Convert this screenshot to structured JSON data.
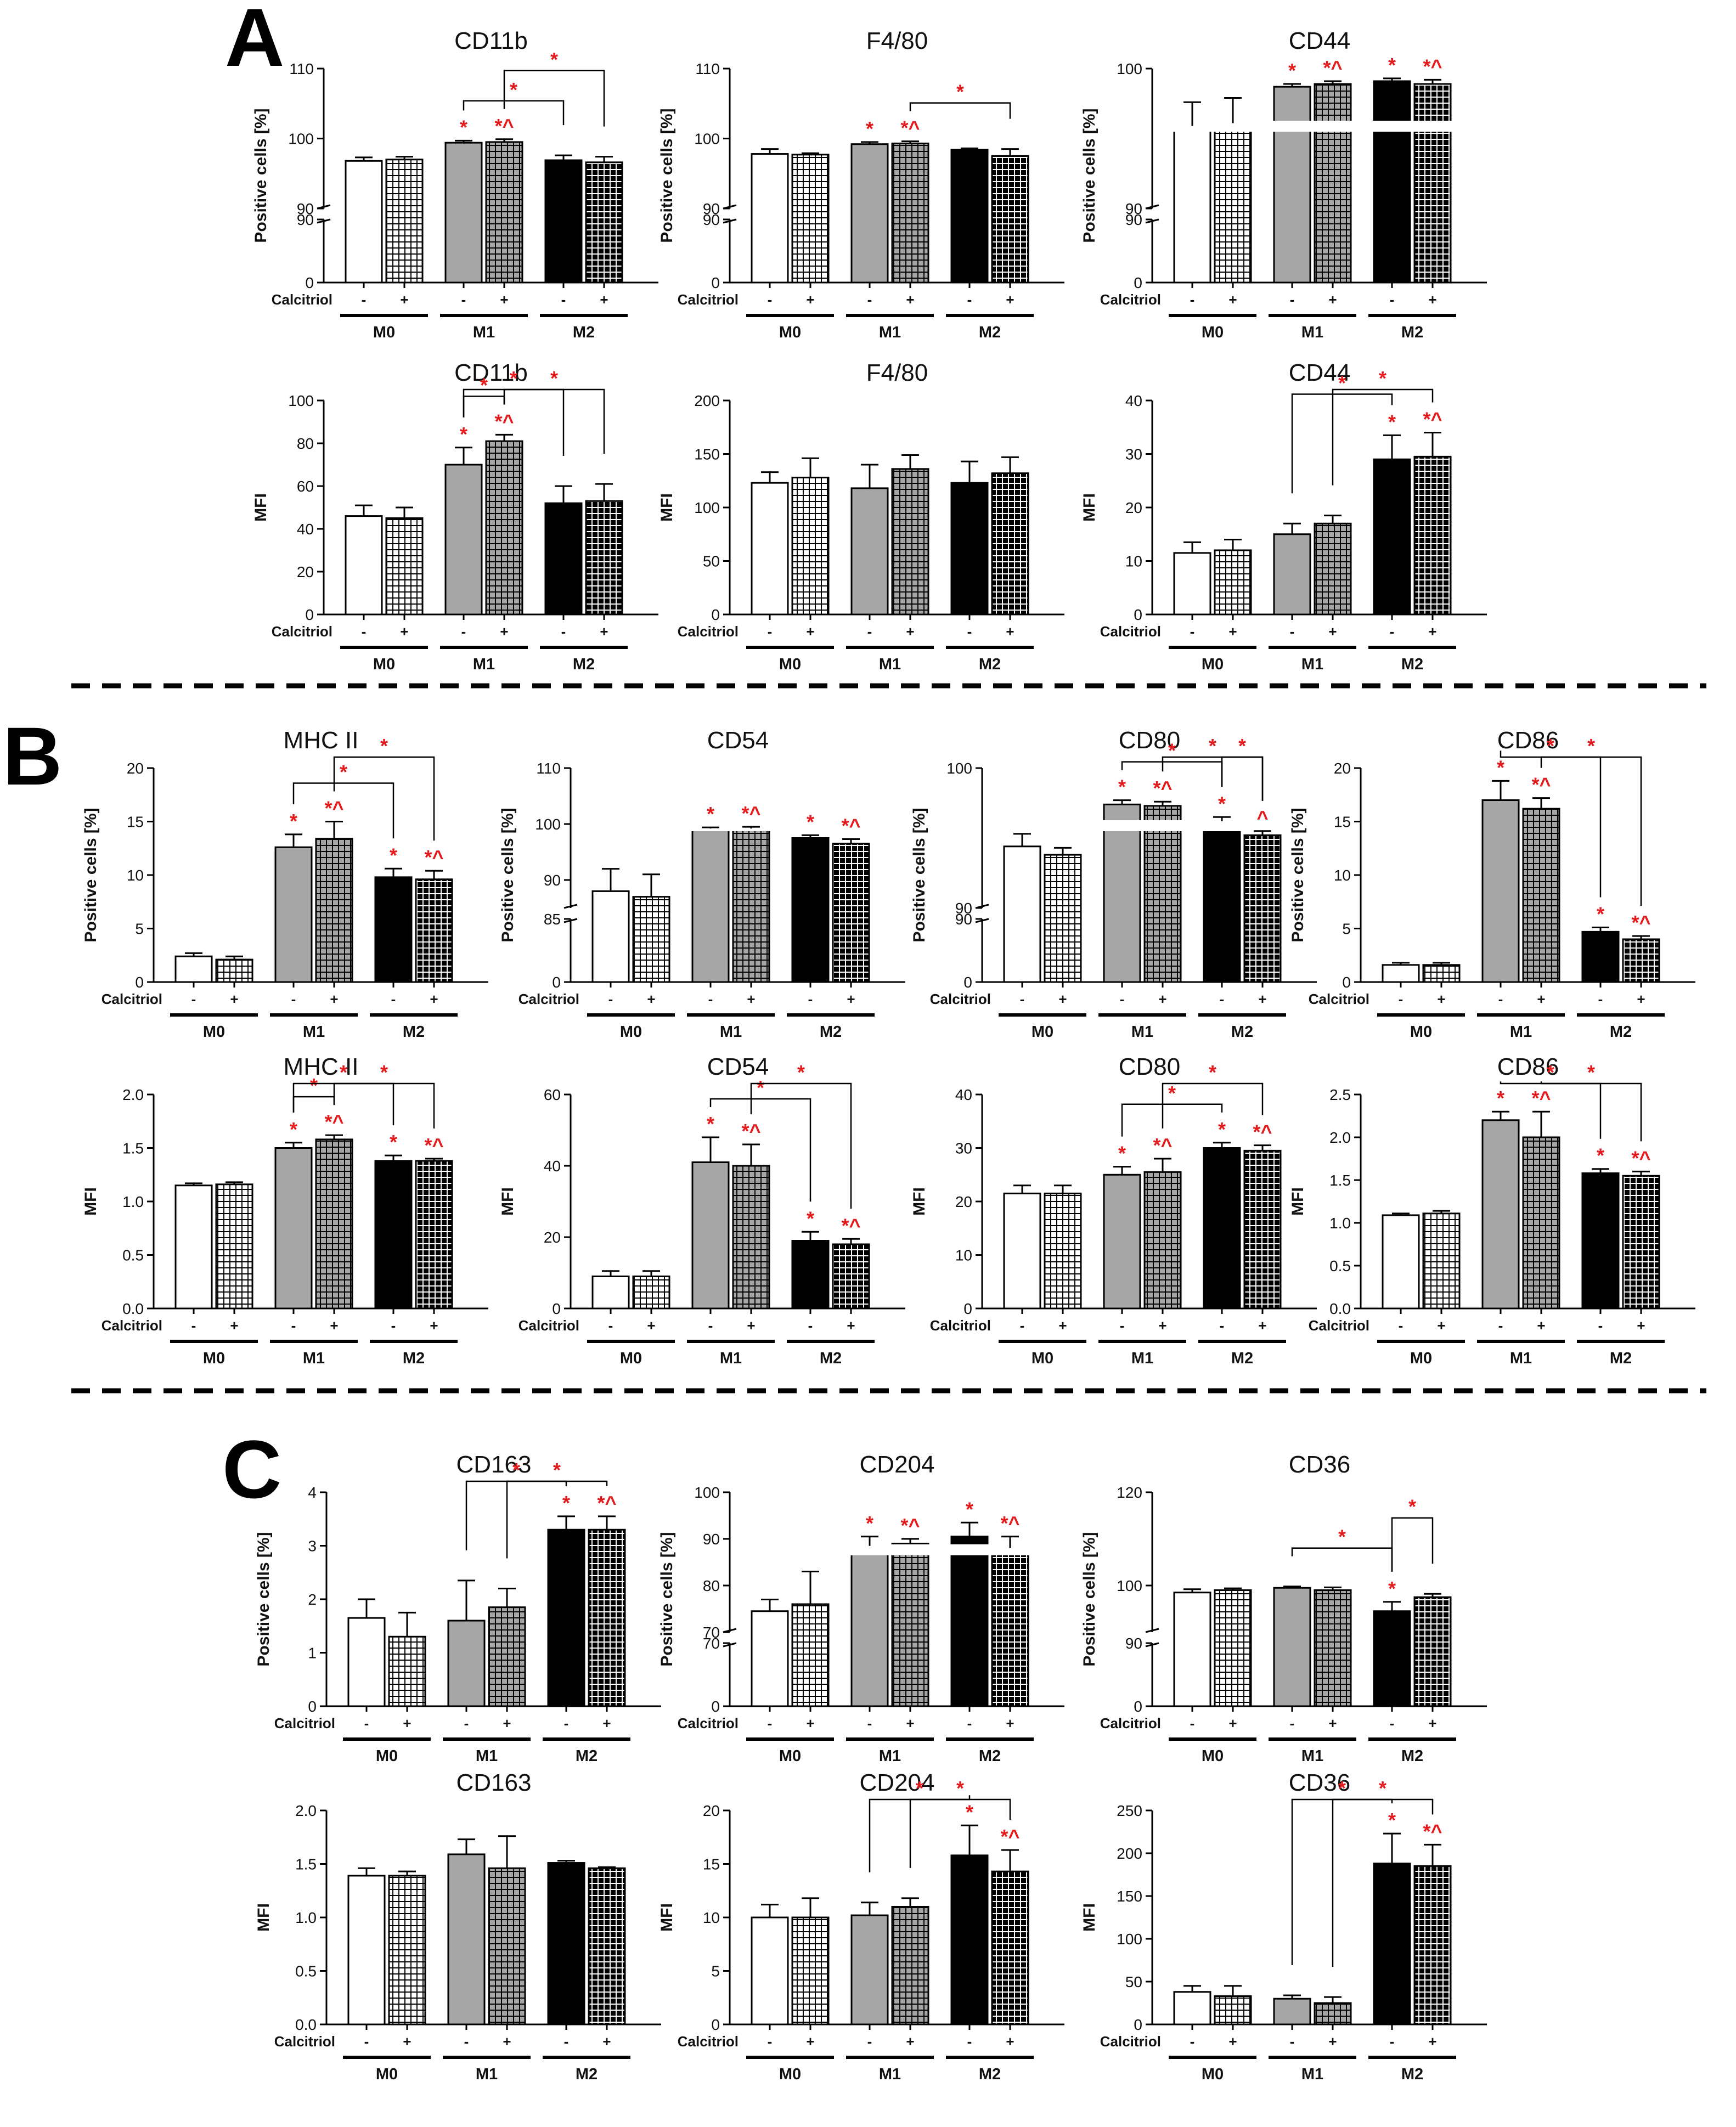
{
  "figure": {
    "sections": [
      "A",
      "B",
      "C"
    ],
    "treatment_label": "Calcitriol",
    "treatment_levels": [
      "-",
      "+"
    ],
    "groups": [
      "M0",
      "M1",
      "M2"
    ],
    "colors": {
      "M0": "#ffffff",
      "M1": "#a6a6a6",
      "M2": "#000000",
      "significance": "#e41a1c",
      "outline": "#000000"
    },
    "significance_symbols": {
      "vs_M0": "*",
      "vs_M0_and_vehicle": "*^",
      "brackets": "*"
    }
  },
  "chart_data": [
    {
      "id": "A1",
      "section": "A",
      "type": "bar",
      "title": "CD11b",
      "ylabel": "Positive cells [%]",
      "axis_break": true,
      "ylim_lower": [
        0,
        90
      ],
      "ylim_upper": [
        90,
        110
      ],
      "yticks_lower": [
        0,
        90
      ],
      "yticks_upper": [
        90,
        100,
        110
      ],
      "categories": [
        "M0 -",
        "M0 +",
        "M1 -",
        "M1 +",
        "M2 -",
        "M2 +"
      ],
      "values": [
        96.8,
        97.0,
        99.4,
        99.5,
        96.9,
        96.6
      ],
      "errors": [
        0.5,
        0.4,
        0.3,
        0.4,
        0.7,
        0.8
      ],
      "stars": [
        "",
        "",
        "*",
        "*^",
        "",
        ""
      ],
      "brackets": [
        [
          2,
          4
        ],
        [
          3,
          5
        ]
      ]
    },
    {
      "id": "A2",
      "section": "A",
      "type": "bar",
      "title": "F4/80",
      "ylabel": "Positive cells [%]",
      "axis_break": true,
      "ylim_lower": [
        0,
        90
      ],
      "ylim_upper": [
        90,
        110
      ],
      "yticks_lower": [
        0,
        90
      ],
      "yticks_upper": [
        90,
        100,
        110
      ],
      "categories": [
        "M0 -",
        "M0 +",
        "M1 -",
        "M1 +",
        "M2 -",
        "M2 +"
      ],
      "values": [
        97.8,
        97.7,
        99.2,
        99.3,
        98.4,
        97.5
      ],
      "errors": [
        0.7,
        0.2,
        0.3,
        0.3,
        0.2,
        1.0
      ],
      "stars": [
        "",
        "",
        "*",
        "*^",
        "",
        ""
      ],
      "brackets": [
        [
          3,
          5
        ]
      ]
    },
    {
      "id": "A3",
      "section": "A",
      "type": "bar",
      "title": "CD44",
      "ylabel": "Positive cells [%]",
      "axis_break": true,
      "ylim_lower": [
        0,
        90
      ],
      "ylim_upper": [
        90,
        100
      ],
      "yticks_lower": [
        0,
        90
      ],
      "yticks_upper": [
        90,
        100
      ],
      "categories": [
        "M0 -",
        "M0 +",
        "M1 -",
        "M1 +",
        "M2 -",
        "M2 +"
      ],
      "values": [
        95.9,
        96.1,
        98.7,
        98.9,
        99.1,
        98.9
      ],
      "errors": [
        1.7,
        1.8,
        0.2,
        0.2,
        0.2,
        0.3
      ],
      "stars": [
        "",
        "",
        "*",
        "*^",
        "*",
        "*^"
      ],
      "brackets": []
    },
    {
      "id": "A4",
      "section": "A",
      "type": "bar",
      "title": "CD11b",
      "ylabel": "MFI",
      "axis_break": false,
      "ylim": [
        0,
        100
      ],
      "yticks": [
        0,
        20,
        40,
        60,
        80,
        100
      ],
      "categories": [
        "M0 -",
        "M0 +",
        "M1 -",
        "M1 +",
        "M2 -",
        "M2 +"
      ],
      "values": [
        46,
        45,
        70,
        81,
        52,
        53
      ],
      "errors": [
        5,
        5,
        8,
        3,
        8,
        8
      ],
      "stars": [
        "",
        "",
        "*",
        "*^",
        "",
        ""
      ],
      "brackets": [
        [
          2,
          3
        ],
        [
          2,
          4
        ],
        [
          3,
          5
        ]
      ]
    },
    {
      "id": "A5",
      "section": "A",
      "type": "bar",
      "title": "F4/80",
      "ylabel": "MFI",
      "axis_break": false,
      "ylim": [
        0,
        200
      ],
      "yticks": [
        0,
        50,
        100,
        150,
        200
      ],
      "categories": [
        "M0 -",
        "M0 +",
        "M1 -",
        "M1 +",
        "M2 -",
        "M2 +"
      ],
      "values": [
        123,
        128,
        118,
        136,
        123,
        132
      ],
      "errors": [
        10,
        18,
        22,
        13,
        20,
        15
      ],
      "stars": [
        "",
        "",
        "",
        "",
        "",
        ""
      ],
      "brackets": []
    },
    {
      "id": "A6",
      "section": "A",
      "type": "bar",
      "title": "CD44",
      "ylabel": "MFI",
      "axis_break": false,
      "ylim": [
        0,
        40
      ],
      "yticks": [
        0,
        10,
        20,
        30,
        40
      ],
      "categories": [
        "M0 -",
        "M0 +",
        "M1 -",
        "M1 +",
        "M2 -",
        "M2 +"
      ],
      "values": [
        11.5,
        12,
        15,
        17,
        29,
        29.5
      ],
      "errors": [
        2,
        2,
        2,
        1.5,
        4.5,
        4.5
      ],
      "stars": [
        "",
        "",
        "",
        "",
        "*",
        "*^"
      ],
      "brackets": [
        [
          2,
          4
        ],
        [
          3,
          5
        ]
      ]
    },
    {
      "id": "B1",
      "section": "B",
      "type": "bar",
      "title": "MHC II",
      "ylabel": "Positive cells [%]",
      "axis_break": false,
      "ylim": [
        0,
        20
      ],
      "yticks": [
        0,
        5,
        10,
        15,
        20
      ],
      "categories": [
        "M0 -",
        "M0 +",
        "M1 -",
        "M1 +",
        "M2 -",
        "M2 +"
      ],
      "values": [
        2.4,
        2.1,
        12.6,
        13.4,
        9.8,
        9.6
      ],
      "errors": [
        0.3,
        0.3,
        1.2,
        1.6,
        0.8,
        0.8
      ],
      "stars": [
        "",
        "",
        "*",
        "*^",
        "*",
        "*^"
      ],
      "brackets": [
        [
          2,
          4
        ],
        [
          3,
          5
        ]
      ]
    },
    {
      "id": "B2",
      "section": "B",
      "type": "bar",
      "title": "CD54",
      "ylabel": "Positive cells [%]",
      "axis_break": true,
      "ylim_lower": [
        0,
        85
      ],
      "ylim_upper": [
        85,
        110
      ],
      "yticks_lower": [
        0,
        85
      ],
      "yticks_upper": [
        90,
        100,
        110
      ],
      "categories": [
        "M0 -",
        "M0 +",
        "M1 -",
        "M1 +",
        "M2 -",
        "M2 +"
      ],
      "values": [
        88,
        87,
        99.2,
        99.2,
        97.5,
        96.5
      ],
      "errors": [
        4,
        4,
        0.2,
        0.3,
        0.5,
        0.8
      ],
      "stars": [
        "",
        "",
        "*",
        "*^",
        "*",
        "*^"
      ],
      "brackets": []
    },
    {
      "id": "B3",
      "section": "B",
      "type": "bar",
      "title": "CD80",
      "ylabel": "Positive cells [%]",
      "axis_break": true,
      "ylim_lower": [
        0,
        90
      ],
      "ylim_upper": [
        90,
        100
      ],
      "yticks_lower": [
        0,
        90
      ],
      "yticks_upper": [
        90,
        100
      ],
      "categories": [
        "M0 -",
        "M0 +",
        "M1 -",
        "M1 +",
        "M2 -",
        "M2 +"
      ],
      "values": [
        94.4,
        93.8,
        97.4,
        97.3,
        96.2,
        95.2
      ],
      "errors": [
        0.9,
        0.5,
        0.3,
        0.3,
        0.3,
        0.3
      ],
      "stars": [
        "",
        "",
        "*",
        "*^",
        "*",
        "^"
      ],
      "brackets": [
        [
          2,
          4
        ],
        [
          3,
          5
        ],
        [
          4,
          5
        ]
      ]
    },
    {
      "id": "B4",
      "section": "B",
      "type": "bar",
      "title": "CD86",
      "ylabel": "Positive cells [%]",
      "axis_break": false,
      "ylim": [
        0,
        20
      ],
      "yticks": [
        0,
        5,
        10,
        15,
        20
      ],
      "categories": [
        "M0 -",
        "M0 +",
        "M1 -",
        "M1 +",
        "M2 -",
        "M2 +"
      ],
      "values": [
        1.6,
        1.6,
        17.0,
        16.2,
        4.7,
        4.0
      ],
      "errors": [
        0.2,
        0.2,
        1.8,
        1.0,
        0.4,
        0.3
      ],
      "stars": [
        "",
        "",
        "*",
        "*^",
        "*",
        "*^"
      ],
      "brackets": [
        [
          2,
          4
        ],
        [
          3,
          5
        ]
      ]
    },
    {
      "id": "B5",
      "section": "B",
      "type": "bar",
      "title": "MHC II",
      "ylabel": "MFI",
      "axis_break": false,
      "ylim": [
        0,
        2.0
      ],
      "yticks": [
        0.0,
        0.5,
        1.0,
        1.5,
        2.0
      ],
      "categories": [
        "M0 -",
        "M0 +",
        "M1 -",
        "M1 +",
        "M2 -",
        "M2 +"
      ],
      "values": [
        1.15,
        1.16,
        1.5,
        1.58,
        1.38,
        1.38
      ],
      "errors": [
        0.02,
        0.02,
        0.05,
        0.04,
        0.05,
        0.02
      ],
      "stars": [
        "",
        "",
        "*",
        "*^",
        "*",
        "*^"
      ],
      "brackets": [
        [
          2,
          3
        ],
        [
          2,
          4
        ],
        [
          3,
          5
        ]
      ]
    },
    {
      "id": "B6",
      "section": "B",
      "type": "bar",
      "title": "CD54",
      "ylabel": "MFI",
      "axis_break": false,
      "ylim": [
        0,
        60
      ],
      "yticks": [
        0,
        20,
        40,
        60
      ],
      "categories": [
        "M0 -",
        "M0 +",
        "M1 -",
        "M1 +",
        "M2 -",
        "M2 +"
      ],
      "values": [
        9,
        9,
        41,
        40,
        19,
        18
      ],
      "errors": [
        1.5,
        1.5,
        7,
        6,
        2.5,
        1.5
      ],
      "stars": [
        "",
        "",
        "*",
        "*^",
        "*",
        "*^"
      ],
      "brackets": [
        [
          2,
          4
        ],
        [
          3,
          5
        ]
      ]
    },
    {
      "id": "B7",
      "section": "B",
      "type": "bar",
      "title": "CD80",
      "ylabel": "MFI",
      "axis_break": false,
      "ylim": [
        0,
        40
      ],
      "yticks": [
        0,
        10,
        20,
        30,
        40
      ],
      "categories": [
        "M0 -",
        "M0 +",
        "M1 -",
        "M1 +",
        "M2 -",
        "M2 +"
      ],
      "values": [
        21.5,
        21.5,
        25,
        25.5,
        30,
        29.5
      ],
      "errors": [
        1.5,
        1.5,
        1.5,
        2.5,
        1,
        1
      ],
      "stars": [
        "",
        "",
        "*",
        "*^",
        "*",
        "*^"
      ],
      "brackets": [
        [
          2,
          4
        ],
        [
          3,
          5
        ]
      ]
    },
    {
      "id": "B8",
      "section": "B",
      "type": "bar",
      "title": "CD86",
      "ylabel": "MFI",
      "axis_break": false,
      "ylim": [
        0,
        2.5
      ],
      "yticks": [
        0.0,
        0.5,
        1.0,
        1.5,
        2.0,
        2.5
      ],
      "categories": [
        "M0 -",
        "M0 +",
        "M1 -",
        "M1 +",
        "M2 -",
        "M2 +"
      ],
      "values": [
        1.09,
        1.11,
        2.2,
        2.0,
        1.58,
        1.55
      ],
      "errors": [
        0.02,
        0.03,
        0.1,
        0.3,
        0.05,
        0.05
      ],
      "stars": [
        "",
        "",
        "*",
        "*^",
        "*",
        "*^"
      ],
      "brackets": [
        [
          2,
          4
        ],
        [
          3,
          5
        ]
      ]
    },
    {
      "id": "C1",
      "section": "C",
      "type": "bar",
      "title": "CD163",
      "ylabel": "Positive cells [%]",
      "axis_break": false,
      "ylim": [
        0,
        4
      ],
      "yticks": [
        0,
        1,
        2,
        3,
        4
      ],
      "categories": [
        "M0 -",
        "M0 +",
        "M1 -",
        "M1 +",
        "M2 -",
        "M2 +"
      ],
      "values": [
        1.65,
        1.3,
        1.6,
        1.85,
        3.3,
        3.3
      ],
      "errors": [
        0.35,
        0.45,
        0.75,
        0.35,
        0.25,
        0.25
      ],
      "stars": [
        "",
        "",
        "",
        "",
        "*",
        "*^"
      ],
      "brackets": [
        [
          2,
          4
        ],
        [
          3,
          5
        ]
      ]
    },
    {
      "id": "C2",
      "section": "C",
      "type": "bar",
      "title": "CD204",
      "ylabel": "Positive cells [%]",
      "axis_break": true,
      "ylim_lower": [
        0,
        70
      ],
      "ylim_upper": [
        70,
        100
      ],
      "yticks_lower": [
        0,
        70
      ],
      "yticks_upper": [
        70,
        80,
        90,
        100
      ],
      "categories": [
        "M0 -",
        "M0 +",
        "M1 -",
        "M1 +",
        "M2 -",
        "M2 +"
      ],
      "values": [
        74.5,
        76,
        88.5,
        89,
        90.5,
        88
      ],
      "errors": [
        2.5,
        7,
        2,
        1,
        3,
        2.5
      ],
      "stars": [
        "",
        "",
        "*",
        "*^",
        "*",
        "*^"
      ],
      "brackets": []
    },
    {
      "id": "C3",
      "section": "C",
      "type": "bar",
      "title": "CD36",
      "ylabel": "Positive cells [%]",
      "axis_break": true,
      "ylim_lower": [
        0,
        90
      ],
      "ylim_upper": [
        90,
        120
      ],
      "yticks_lower": [
        0,
        90
      ],
      "yticks_upper": [
        100,
        120
      ],
      "categories": [
        "M0 -",
        "M0 +",
        "M1 -",
        "M1 +",
        "M2 -",
        "M2 +"
      ],
      "values": [
        98.5,
        99,
        99.5,
        99,
        94.5,
        97.5
      ],
      "errors": [
        0.7,
        0.4,
        0.3,
        0.6,
        2.0,
        0.7
      ],
      "stars": [
        "",
        "",
        "",
        "",
        "*",
        ""
      ],
      "brackets": [
        [
          2,
          4
        ],
        [
          4,
          5
        ]
      ]
    },
    {
      "id": "C4",
      "section": "C",
      "type": "bar",
      "title": "CD163",
      "ylabel": "MFI",
      "axis_break": false,
      "ylim": [
        0,
        2.0
      ],
      "yticks": [
        0.0,
        0.5,
        1.0,
        1.5,
        2.0
      ],
      "categories": [
        "M0 -",
        "M0 +",
        "M1 -",
        "M1 +",
        "M2 -",
        "M2 +"
      ],
      "values": [
        1.39,
        1.39,
        1.59,
        1.46,
        1.51,
        1.46
      ],
      "errors": [
        0.07,
        0.04,
        0.14,
        0.3,
        0.02,
        0.01
      ],
      "stars": [
        "",
        "",
        "",
        "",
        "",
        ""
      ],
      "brackets": []
    },
    {
      "id": "C5",
      "section": "C",
      "type": "bar",
      "title": "CD204",
      "ylabel": "MFI",
      "axis_break": false,
      "ylim": [
        0,
        20
      ],
      "yticks": [
        0,
        5,
        10,
        15,
        20
      ],
      "categories": [
        "M0 -",
        "M0 +",
        "M1 -",
        "M1 +",
        "M2 -",
        "M2 +"
      ],
      "values": [
        10,
        10,
        10.2,
        11,
        15.8,
        14.3
      ],
      "errors": [
        1.2,
        1.8,
        1.2,
        0.8,
        2.8,
        2
      ],
      "stars": [
        "",
        "",
        "",
        "",
        "*",
        "*^"
      ],
      "brackets": [
        [
          2,
          4
        ],
        [
          3,
          5
        ]
      ]
    },
    {
      "id": "C6",
      "section": "C",
      "type": "bar",
      "title": "CD36",
      "ylabel": "MFI",
      "axis_break": false,
      "ylim": [
        0,
        250
      ],
      "yticks": [
        0,
        50,
        100,
        150,
        200,
        250
      ],
      "categories": [
        "M0 -",
        "M0 +",
        "M1 -",
        "M1 +",
        "M2 -",
        "M2 +"
      ],
      "values": [
        38,
        33,
        30,
        25,
        188,
        185
      ],
      "errors": [
        7,
        12,
        4,
        7,
        35,
        25
      ],
      "stars": [
        "",
        "",
        "",
        "",
        "*",
        "*^"
      ],
      "brackets": [
        [
          2,
          4
        ],
        [
          3,
          5
        ]
      ]
    }
  ]
}
